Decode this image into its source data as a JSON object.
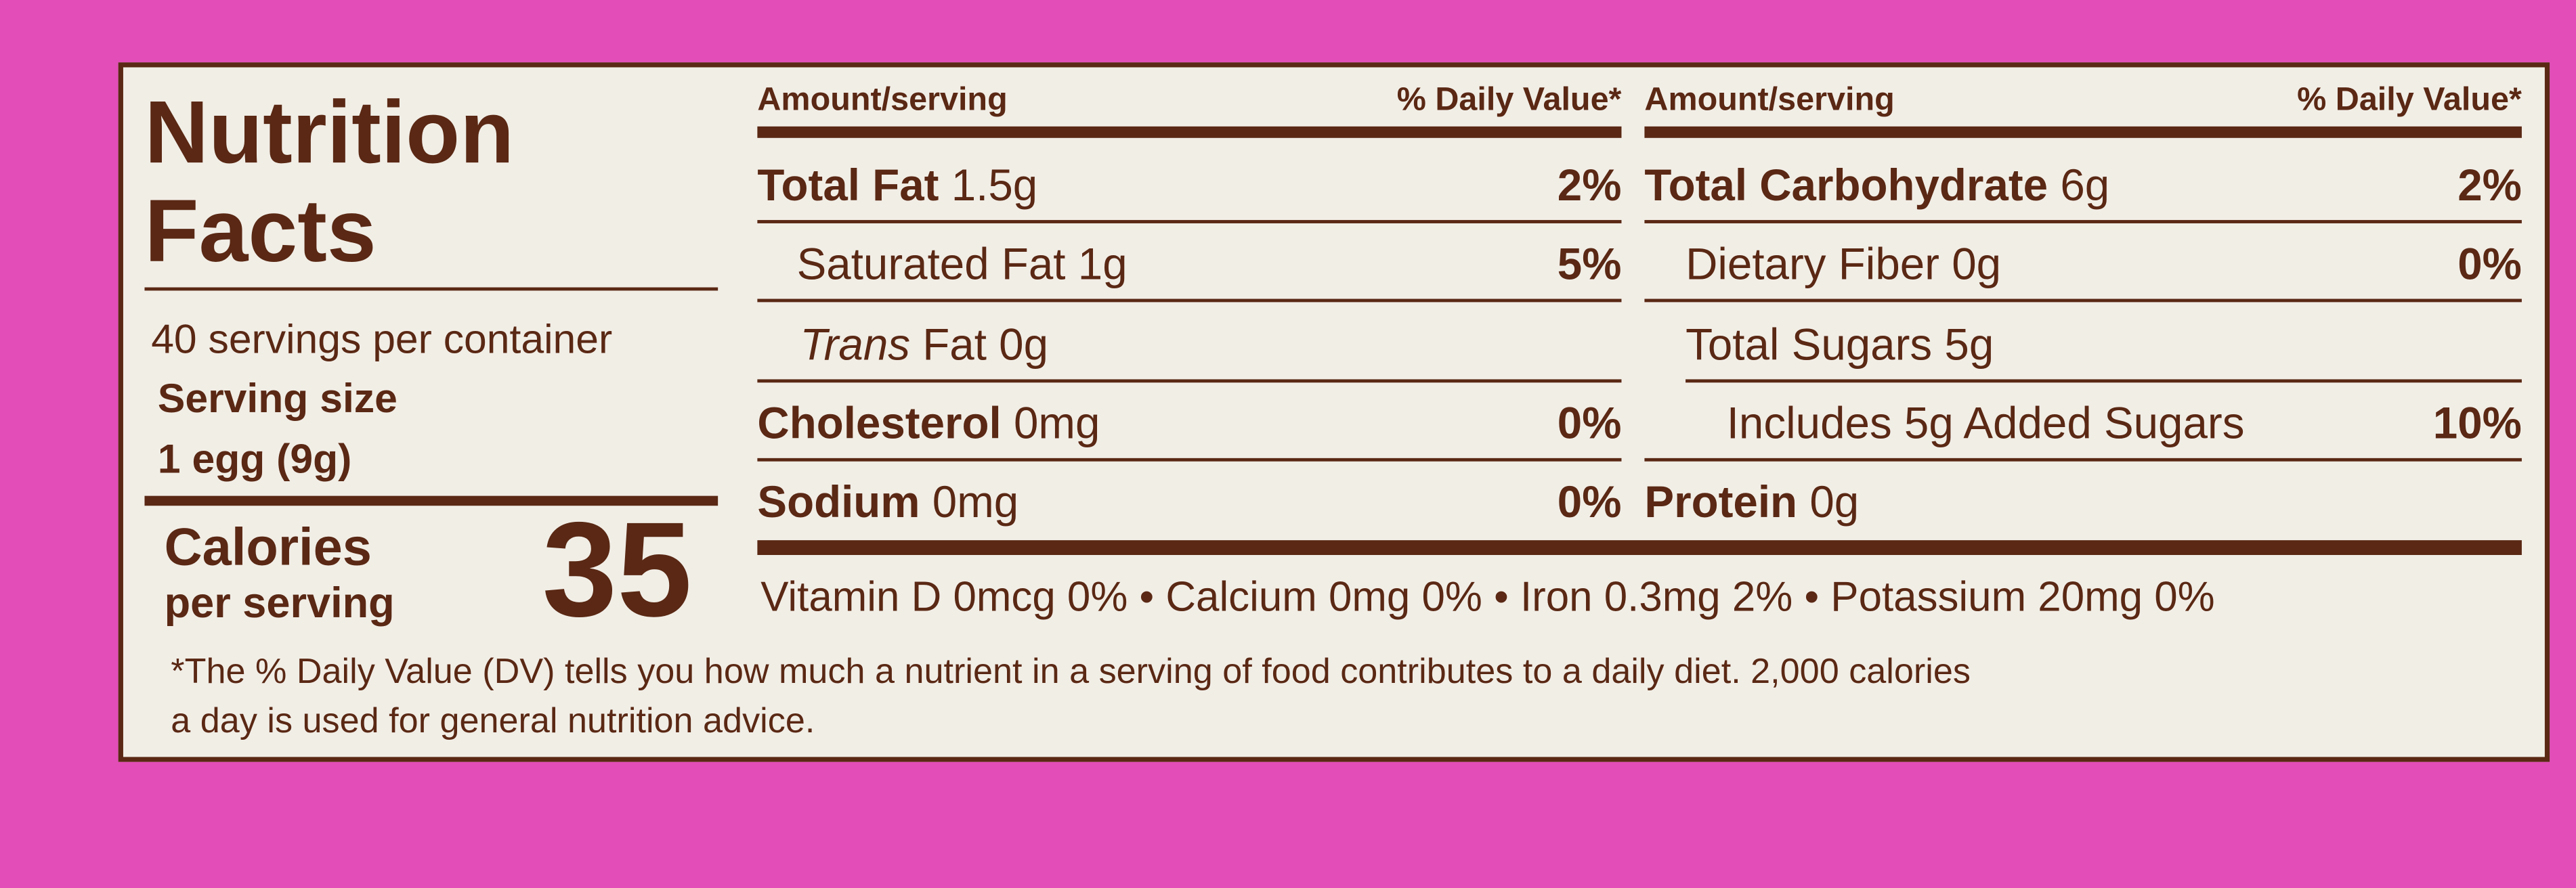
{
  "title_line1": "Nutrition",
  "title_line2": "Facts",
  "servings": "40 servings per container",
  "serving_size_label": "Serving size",
  "serving_size": "1 egg (9g)",
  "calories_label1": "Calories",
  "calories_label2": "per serving",
  "calories": "35",
  "columns": [
    {
      "amount_header": "Amount/serving",
      "dv_header": "% Daily Value*",
      "rows": [
        {
          "name": "Total Fat",
          "amount": "1.5g",
          "dv": "2%"
        },
        {
          "name": "Saturated Fat",
          "amount": "1g",
          "dv": "5%"
        },
        {
          "name_italic": "Trans",
          "name": "Fat",
          "amount": "0g"
        },
        {
          "name": "Cholesterol",
          "amount": "0mg",
          "dv": "0%"
        },
        {
          "name": "Sodium",
          "amount": "0mg",
          "dv": "0%"
        }
      ]
    },
    {
      "amount_header": "Amount/serving",
      "dv_header": "% Daily Value*",
      "rows": [
        {
          "name": "Total Carbohydrate",
          "amount": "6g",
          "dv": "2%"
        },
        {
          "name": "Dietary Fiber",
          "amount": "0g",
          "dv": "0%"
        },
        {
          "name": "Total Sugars",
          "amount": "5g"
        },
        {
          "name": "Includes 5g Added Sugars",
          "dv": "10%"
        },
        {
          "name": "Protein",
          "amount": "0g"
        }
      ]
    }
  ],
  "vitamins": "Vitamin D 0mcg 0% • Calcium 0mg 0% • Iron 0.3mg 2% • Potassium 20mg 0%",
  "footnote_line1": "*The % Daily Value (DV) tells you how much a nutrient in a serving of food contributes to a daily diet. 2,000 calories",
  "footnote_line2": "a day is used for general nutrition advice."
}
